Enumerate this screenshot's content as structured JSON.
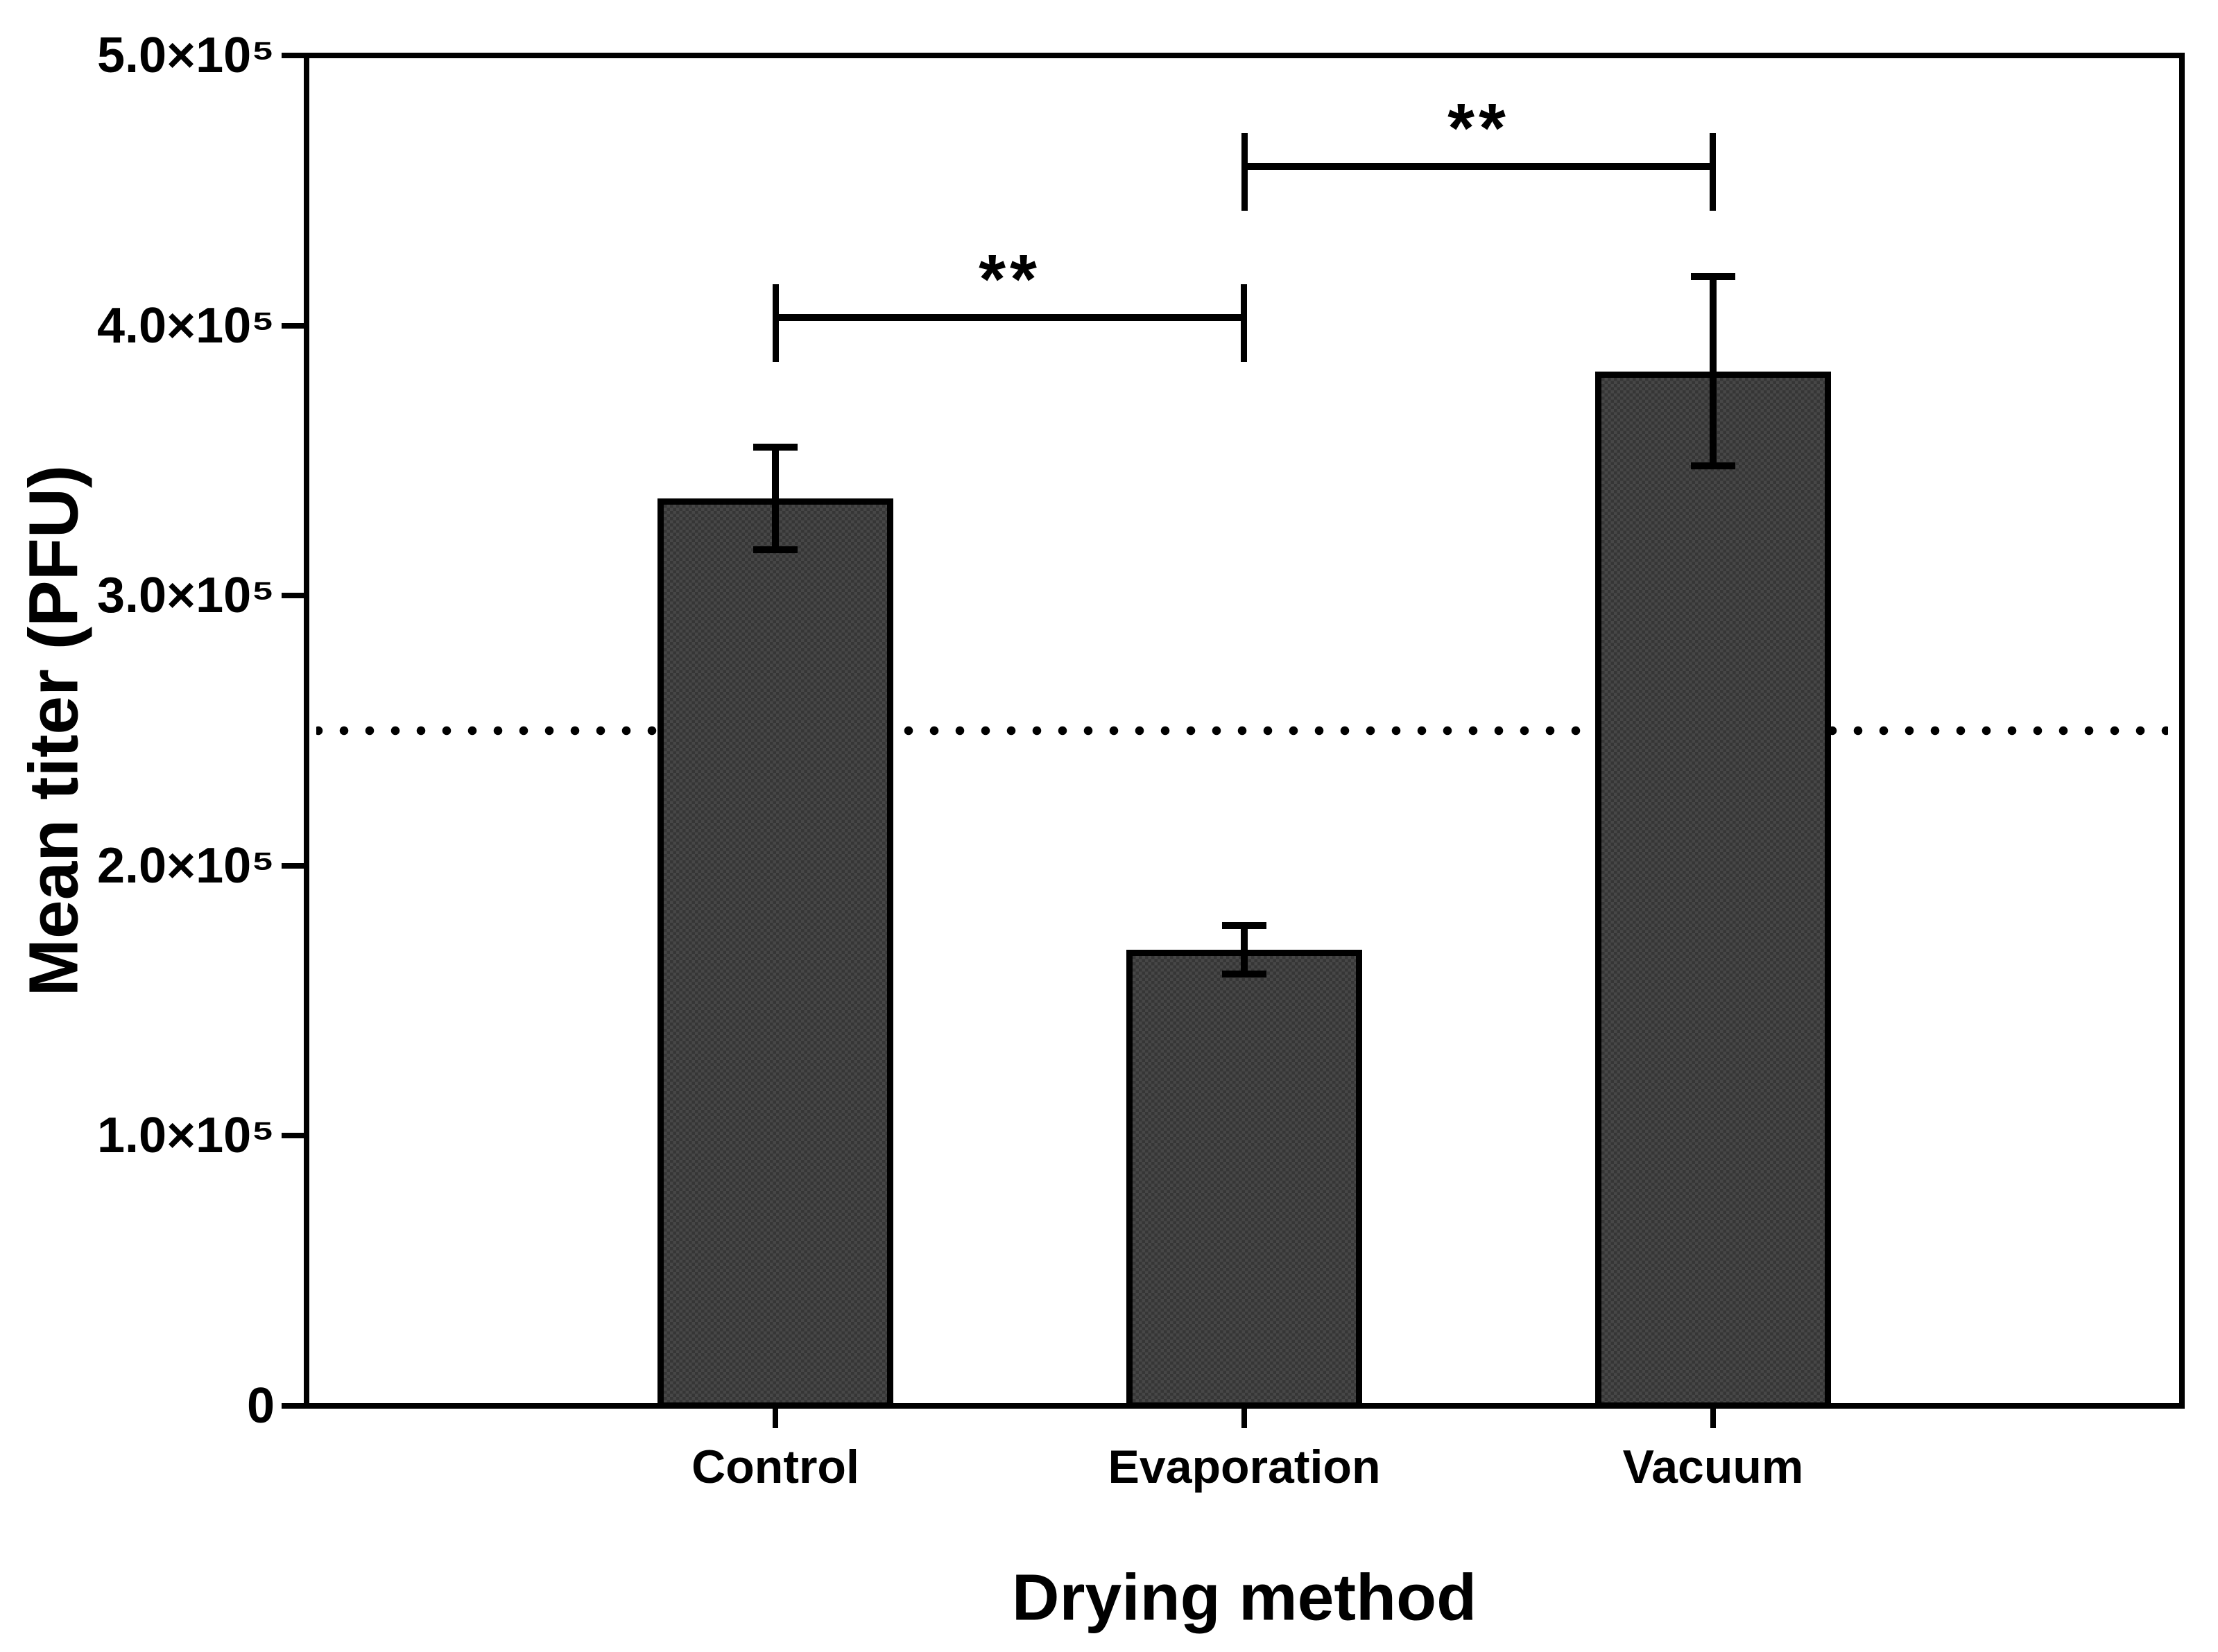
{
  "figure": {
    "background": "#ffffff",
    "axis_color": "#000000",
    "text_color": "#000000"
  },
  "chart_data": {
    "type": "bar",
    "title": "",
    "xlabel": "Drying method",
    "ylabel": "Mean titer (PFU)",
    "categories": [
      "Control",
      "Evaporation",
      "Vacuum"
    ],
    "series": [
      {
        "name": "Mean titer",
        "values": [
          336000,
          169000,
          383000
        ],
        "errors": [
          19000,
          9000,
          35000
        ]
      }
    ],
    "ylim": [
      0,
      500000
    ],
    "yticks": [
      {
        "value": 0,
        "label": "0"
      },
      {
        "value": 100000,
        "label": "1.0×10⁵"
      },
      {
        "value": 200000,
        "label": "2.0×10⁵"
      },
      {
        "value": 300000,
        "label": "3.0×10⁵"
      },
      {
        "value": 400000,
        "label": "4.0×10⁵"
      },
      {
        "value": 500000,
        "label": "5.0×10⁵"
      }
    ],
    "reference_line": {
      "value": 250000,
      "style": "dotted",
      "color": "#000000"
    },
    "significance_brackets": [
      {
        "from_category": "Control",
        "to_category": "Evaporation",
        "label": "**",
        "height_value": 403000
      },
      {
        "from_category": "Evaporation",
        "to_category": "Vacuum",
        "label": "**",
        "height_value": 459000
      }
    ],
    "bar_style": {
      "fill": "#3a3a3a",
      "fill_checker": "#474747",
      "border": "#000000",
      "error_bar_color": "#000000"
    },
    "grid": false,
    "legend": null
  }
}
